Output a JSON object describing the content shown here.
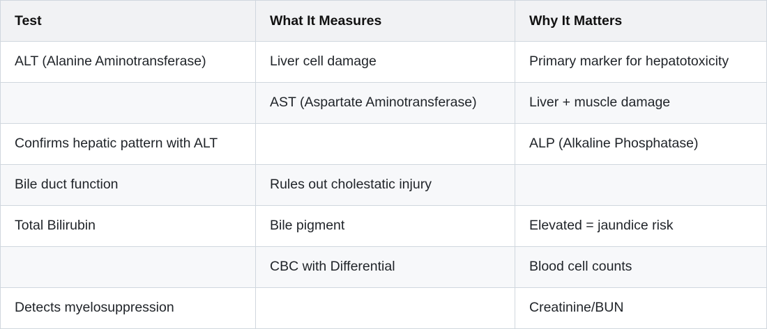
{
  "table": {
    "headers": [
      "Test",
      "What It Measures",
      "Why It Matters"
    ],
    "rows": [
      [
        "ALT (Alanine Aminotransferase)",
        "Liver cell damage",
        "Primary marker for hepatotoxicity"
      ],
      [
        "",
        "AST (Aspartate Aminotransferase)",
        "Liver + muscle damage"
      ],
      [
        "Confirms hepatic pattern with ALT",
        "",
        "ALP (Alkaline Phosphatase)"
      ],
      [
        "Bile duct function",
        "Rules out cholestatic injury",
        ""
      ],
      [
        "Total Bilirubin",
        "Bile pigment",
        "Elevated = jaundice risk"
      ],
      [
        "",
        "CBC with Differential",
        "Blood cell counts"
      ],
      [
        "Detects myelosuppression",
        "",
        "Creatinine/BUN"
      ]
    ]
  }
}
